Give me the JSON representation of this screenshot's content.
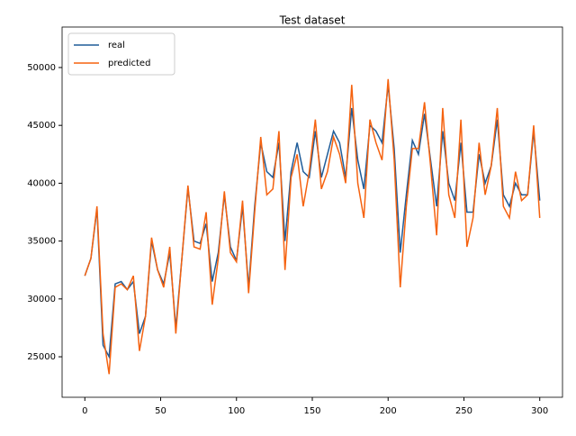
{
  "chart_data": {
    "type": "line",
    "title": "Test dataset",
    "x": [
      0,
      4,
      8,
      12,
      16,
      20,
      24,
      28,
      32,
      36,
      40,
      44,
      48,
      52,
      56,
      60,
      64,
      68,
      72,
      76,
      80,
      84,
      88,
      92,
      96,
      100,
      104,
      108,
      112,
      116,
      120,
      124,
      128,
      132,
      136,
      140,
      144,
      148,
      152,
      156,
      160,
      164,
      168,
      172,
      176,
      180,
      184,
      188,
      192,
      196,
      200,
      204,
      208,
      212,
      216,
      220,
      224,
      228,
      232,
      236,
      240,
      244,
      248,
      252,
      256,
      260,
      264,
      268,
      272,
      276,
      280,
      284,
      288,
      292,
      296,
      300
    ],
    "series": [
      {
        "name": "real",
        "color": "#1f5c99",
        "values": [
          32000,
          33500,
          37800,
          26000,
          25000,
          31300,
          31500,
          30800,
          31500,
          27000,
          28500,
          35000,
          32500,
          31300,
          34000,
          27500,
          33500,
          39600,
          35000,
          34800,
          36500,
          31500,
          34000,
          39000,
          34500,
          33300,
          38000,
          31000,
          38000,
          43500,
          41000,
          40500,
          43500,
          35000,
          41000,
          43500,
          41000,
          40500,
          44500,
          40500,
          42500,
          44500,
          43500,
          40500,
          46500,
          42000,
          39500,
          45000,
          44500,
          43500,
          48500,
          43000,
          34000,
          39000,
          43700,
          42500,
          46000,
          42000,
          38000,
          44500,
          40000,
          38500,
          43500,
          37500,
          37500,
          42500,
          40000,
          41500,
          45500,
          39000,
          38000,
          40000,
          39000,
          39000,
          44500,
          38500
        ]
      },
      {
        "name": "predicted",
        "color": "#f5620f",
        "values": [
          32000,
          33500,
          38000,
          27000,
          23500,
          31000,
          31300,
          30800,
          32000,
          25500,
          28500,
          35300,
          32500,
          31000,
          34500,
          27000,
          33500,
          39800,
          34500,
          34300,
          37500,
          29500,
          33500,
          39300,
          34000,
          33200,
          38500,
          30500,
          37500,
          44000,
          39000,
          39500,
          44500,
          32500,
          40500,
          42500,
          38000,
          41000,
          45500,
          39500,
          41000,
          44000,
          42500,
          40000,
          48500,
          40000,
          37000,
          45500,
          43500,
          42000,
          49000,
          42000,
          31000,
          38000,
          43000,
          43000,
          47000,
          41500,
          35500,
          46500,
          39000,
          37000,
          45500,
          34500,
          37000,
          43500,
          39000,
          41500,
          46500,
          38000,
          37000,
          41000,
          38500,
          39000,
          45000,
          37000
        ]
      }
    ],
    "xlim": [
      -15,
      315
    ],
    "xticks": [
      0,
      50,
      100,
      150,
      200,
      250,
      300
    ],
    "ylim": [
      21500,
      53500
    ],
    "yticks": [
      25000,
      30000,
      35000,
      40000,
      45000,
      50000
    ],
    "legend": "upper left"
  }
}
